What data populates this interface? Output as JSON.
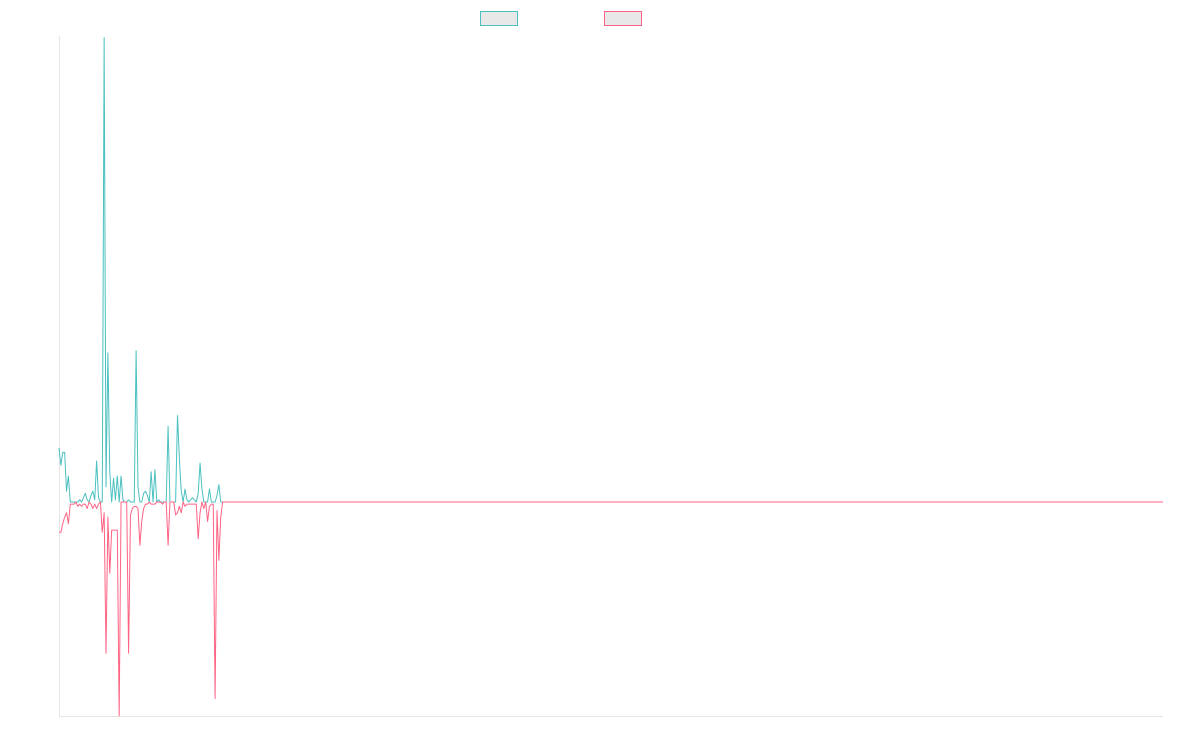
{
  "chart_data": {
    "type": "line",
    "title": "",
    "xlabel": "",
    "ylabel": "",
    "grid": false,
    "legend_position": "top-center",
    "ylim": [
      -100,
      100
    ],
    "series": [
      {
        "name": "",
        "color": "#4bc0c0",
        "values": [
          25,
          17,
          23,
          23,
          5,
          12,
          0,
          0,
          0,
          0,
          0,
          1,
          0,
          2,
          4,
          1,
          0,
          3,
          5,
          1,
          19,
          2,
          0,
          0,
          215,
          7,
          69,
          14,
          0,
          11,
          1,
          12,
          0,
          12,
          1,
          0,
          0,
          1,
          0,
          0,
          0,
          70,
          7,
          0,
          0,
          4,
          5,
          3,
          0,
          14,
          0,
          15,
          0,
          1,
          0,
          0,
          0,
          0,
          35,
          0,
          0,
          0,
          0,
          40,
          20,
          5,
          0,
          6,
          1,
          0,
          1,
          2,
          1,
          0,
          4,
          18,
          6,
          0,
          0,
          0,
          6,
          0,
          0,
          0,
          3,
          8,
          0,
          0,
          0,
          0,
          0,
          0,
          0,
          0,
          0,
          0,
          0,
          0,
          0,
          0,
          0,
          0,
          0,
          0,
          0,
          0,
          0,
          0,
          0,
          0,
          0,
          0,
          0,
          0,
          0,
          0,
          0,
          0,
          0,
          0,
          0,
          0,
          0,
          0,
          0,
          0,
          0,
          0,
          0,
          0,
          0,
          0,
          0,
          0,
          0,
          0,
          0,
          0,
          0,
          0,
          0,
          0,
          0,
          0,
          0,
          0,
          0,
          0,
          0,
          0,
          0,
          0,
          0,
          0,
          0,
          0,
          0,
          0,
          0,
          0,
          0,
          0,
          0,
          0,
          0,
          0,
          0,
          0,
          0,
          0,
          0,
          0,
          0,
          0,
          0,
          0,
          0,
          0,
          0,
          0,
          0,
          0,
          0,
          0,
          0,
          0,
          0,
          0,
          0,
          0,
          0,
          0,
          0,
          0,
          0,
          0,
          0,
          0,
          0,
          0,
          0,
          0,
          0,
          0,
          0,
          0,
          0,
          0,
          0,
          0,
          0,
          0,
          0,
          0,
          0,
          0,
          0,
          0,
          0,
          0,
          0,
          0,
          0,
          0,
          0,
          0,
          0,
          0,
          0,
          0,
          0,
          0,
          0,
          0,
          0,
          0,
          0,
          0,
          0,
          0,
          0,
          0,
          0,
          0,
          0,
          0,
          0,
          0,
          0,
          0,
          0,
          0,
          0,
          0,
          0,
          0,
          0,
          0,
          0,
          0,
          0,
          0,
          0,
          0,
          0,
          0,
          0,
          0,
          0,
          0,
          0,
          0,
          0,
          0,
          0,
          0,
          0,
          0,
          0,
          0,
          0,
          0,
          0,
          0,
          0,
          0,
          0,
          0,
          0,
          0,
          0,
          0,
          0,
          0,
          0,
          0,
          0,
          0,
          0,
          0,
          0,
          0,
          0,
          0,
          0,
          0,
          0,
          0,
          0,
          0,
          0,
          0,
          0,
          0,
          0,
          0,
          0,
          0,
          0,
          0,
          0,
          0,
          0,
          0,
          0,
          0,
          0,
          0,
          0,
          0,
          0,
          0,
          0,
          0,
          0,
          0,
          0,
          0,
          0,
          0,
          0,
          0,
          0,
          0,
          0,
          0,
          0,
          0,
          0,
          0,
          0,
          0,
          0,
          0,
          0,
          0,
          0,
          0,
          0,
          0,
          0,
          0,
          0,
          0,
          0,
          0,
          0,
          0,
          0,
          0,
          0,
          0,
          0,
          0,
          0,
          0,
          0,
          0,
          0,
          0,
          0,
          0,
          0,
          0,
          0,
          0,
          0,
          0,
          0,
          0,
          0,
          0,
          0,
          0,
          0,
          0,
          0,
          0,
          0,
          0,
          0,
          0,
          0,
          0,
          0,
          0,
          0,
          0,
          0,
          0,
          0,
          0,
          0,
          0,
          0,
          0,
          0,
          0,
          0,
          0,
          0,
          0,
          0,
          0,
          0,
          0,
          0,
          0,
          0,
          0,
          0,
          0,
          0,
          0,
          0,
          0,
          0,
          0,
          0,
          0,
          0,
          0,
          0,
          0,
          0,
          0,
          0,
          0,
          0,
          0,
          0,
          0,
          0,
          0,
          0,
          0,
          0,
          0,
          0,
          0,
          0,
          0,
          0,
          0,
          0,
          0,
          0,
          0,
          0,
          0,
          0,
          0,
          0,
          0,
          0,
          0,
          0,
          0,
          0,
          0,
          0,
          0,
          0,
          0,
          0,
          0,
          0,
          0,
          0,
          0,
          0,
          0,
          0,
          0,
          0,
          0,
          0,
          0,
          0,
          0,
          0,
          0,
          0,
          0,
          0,
          0,
          0,
          0,
          0,
          0,
          0,
          0,
          0,
          0,
          0,
          0,
          0,
          0,
          0,
          0,
          0,
          0,
          0,
          0,
          0,
          0,
          0,
          0,
          0,
          0,
          0,
          0,
          0,
          0,
          0,
          0,
          0,
          0,
          0,
          0,
          0,
          0,
          0,
          0,
          0,
          0,
          0,
          0,
          0,
          0,
          0,
          0,
          0,
          0,
          0,
          0,
          0,
          0,
          0,
          0,
          0,
          0,
          0,
          0,
          0,
          0,
          0,
          0,
          0,
          0,
          0,
          0,
          0,
          0,
          0,
          0,
          0,
          0,
          0,
          0,
          0,
          0,
          0,
          0,
          0,
          0,
          0,
          0
        ]
      },
      {
        "name": "",
        "color": "#ff6384",
        "values": [
          -14,
          -14,
          -10,
          -7,
          -5,
          -10,
          -1,
          -1,
          -1,
          0,
          -2,
          -1,
          -2,
          -1,
          -1,
          -3,
          0,
          -1,
          -3,
          -1,
          -3,
          -1,
          0,
          -14,
          -5,
          -70,
          -7,
          -33,
          -13,
          -13,
          -13,
          -13,
          -99,
          0,
          0,
          0,
          0,
          -70,
          -6,
          -3,
          -2,
          -2,
          -3,
          -20,
          -9,
          -3,
          -1,
          -1,
          0,
          -1,
          -1,
          -1,
          0,
          0,
          0,
          -1,
          0,
          0,
          -20,
          0,
          0,
          0,
          -6,
          -5,
          -2,
          -5,
          0,
          -2,
          -1,
          -1,
          -1,
          -1,
          -1,
          -1,
          -17,
          -5,
          0,
          -3,
          0,
          -9,
          -2,
          -1,
          -1,
          -91,
          -4,
          -27,
          -7,
          0,
          0,
          0,
          0,
          0,
          0,
          0,
          0,
          0,
          0,
          0,
          0,
          0,
          0,
          0,
          0,
          0,
          0,
          0,
          0,
          0,
          0,
          0,
          0,
          0,
          0,
          0,
          0,
          0,
          0,
          0,
          0,
          0,
          0,
          0,
          0,
          0,
          0,
          0,
          0,
          0,
          0,
          0,
          0,
          0,
          0,
          0,
          0,
          0,
          0,
          0,
          0,
          0,
          0,
          0,
          0,
          0,
          0,
          0,
          0,
          0,
          0,
          0,
          0,
          0,
          0,
          0,
          0,
          0,
          0,
          0,
          0,
          0,
          0,
          0,
          0,
          0,
          0,
          0,
          0,
          0,
          0,
          0,
          0,
          0,
          0,
          0,
          0,
          0,
          0,
          0,
          0,
          0,
          0,
          0,
          0,
          0,
          0,
          0,
          0,
          0,
          0,
          0,
          0,
          0,
          0,
          0,
          0,
          0,
          0,
          0,
          0,
          0,
          0,
          0,
          0,
          0,
          0,
          0,
          0,
          0,
          0,
          0,
          0,
          0,
          0,
          0,
          0,
          0,
          0,
          0,
          0,
          0,
          0,
          0,
          0,
          0,
          0,
          0,
          0,
          0,
          0,
          0,
          0,
          0,
          0,
          0,
          0,
          0,
          0,
          0,
          0,
          0,
          0,
          0,
          0,
          0,
          0,
          0,
          0,
          0,
          0,
          0,
          0,
          0,
          0,
          0,
          0,
          0,
          0,
          0,
          0,
          0,
          0,
          0,
          0,
          0,
          0,
          0,
          0,
          0,
          0,
          0,
          0,
          0,
          0,
          0,
          0,
          0,
          0,
          0,
          0,
          0,
          0,
          0,
          0,
          0,
          0,
          0,
          0,
          0,
          0,
          0,
          0,
          0,
          0,
          0,
          0,
          0,
          0,
          0,
          0,
          0,
          0,
          0,
          0,
          0,
          0,
          0,
          0,
          0,
          0,
          0,
          0,
          0,
          0,
          0,
          0,
          0,
          0,
          0,
          0,
          0,
          0,
          0,
          0,
          0,
          0,
          0,
          0,
          0,
          0,
          0,
          0,
          0,
          0,
          0,
          0,
          0,
          0,
          0,
          0,
          0,
          0,
          0,
          0,
          0,
          0,
          0,
          0,
          0,
          0,
          0,
          0,
          0,
          0,
          0,
          0,
          0,
          0,
          0,
          0,
          0,
          0,
          0,
          0,
          0,
          0,
          0,
          0,
          0,
          0,
          0,
          0,
          0,
          0,
          0,
          0,
          0,
          0,
          0,
          0,
          0,
          0,
          0,
          0,
          0,
          0,
          0,
          0,
          0,
          0,
          0,
          0,
          0,
          0,
          0,
          0,
          0,
          0,
          0,
          0,
          0,
          0,
          0,
          0,
          0,
          0,
          0,
          0,
          0,
          0,
          0,
          0,
          0,
          0,
          0,
          0,
          0,
          0,
          0,
          0,
          0,
          0,
          0,
          0,
          0,
          0,
          0,
          0,
          0,
          0,
          0,
          0,
          0,
          0,
          0,
          0,
          0,
          0,
          0,
          0,
          0,
          0,
          0,
          0,
          0,
          0,
          0,
          0,
          0,
          0,
          0,
          0,
          0,
          0,
          0,
          0,
          0,
          0,
          0,
          0,
          0,
          0,
          0,
          0,
          0,
          0,
          0,
          0,
          0,
          0,
          0,
          0,
          0,
          0,
          0,
          0,
          0,
          0,
          0,
          0,
          0,
          0,
          0,
          0,
          0,
          0,
          0,
          0,
          0,
          0,
          0,
          0,
          0,
          0,
          0,
          0,
          0,
          0,
          0,
          0,
          0,
          0,
          0,
          0,
          0,
          0,
          0,
          0,
          0,
          0,
          0,
          0,
          0,
          0,
          0,
          0,
          0,
          0,
          0,
          0,
          0,
          0,
          0,
          0,
          0,
          0,
          0,
          0,
          0,
          0,
          0,
          0,
          0,
          0,
          0,
          0,
          0,
          0,
          0,
          0,
          0,
          0,
          0,
          0,
          0,
          0,
          0,
          0,
          0,
          0,
          0,
          0,
          0,
          0,
          0,
          0,
          0,
          0,
          0,
          0,
          0,
          0,
          0,
          0,
          0,
          0,
          0,
          0,
          0,
          0,
          0,
          0,
          0,
          0,
          0,
          0,
          0,
          0,
          0,
          0,
          0,
          0,
          0,
          0,
          0,
          0,
          0,
          0,
          0
        ]
      }
    ]
  }
}
